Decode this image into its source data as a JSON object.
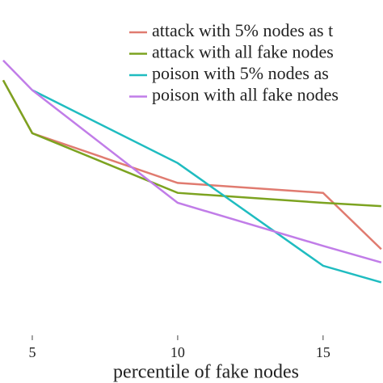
{
  "chart_data": {
    "type": "line",
    "x_label": "percentile of fake nodes",
    "x": [
      4,
      5,
      10,
      15,
      17
    ],
    "xlim": [
      3.89,
      17.06
    ],
    "xticks": [
      5,
      10,
      15
    ],
    "ylim": [
      0,
      1
    ],
    "series": [
      {
        "name": "attack with 5% nodes as t",
        "color": "#e07b70",
        "values": [
          0.77,
          0.61,
          0.46,
          0.43,
          0.26
        ]
      },
      {
        "name": "attack with all fake nodes",
        "color": "#7ca320",
        "values": [
          0.77,
          0.61,
          0.43,
          0.4,
          0.39
        ]
      },
      {
        "name": "poison with 5% nodes as",
        "color": "#1fbcc0",
        "values": [
          null,
          0.74,
          0.52,
          0.21,
          0.16
        ]
      },
      {
        "name": "poison with all fake nodes",
        "color": "#c17de8",
        "values": [
          0.83,
          0.74,
          0.4,
          0.27,
          0.22
        ]
      }
    ]
  }
}
